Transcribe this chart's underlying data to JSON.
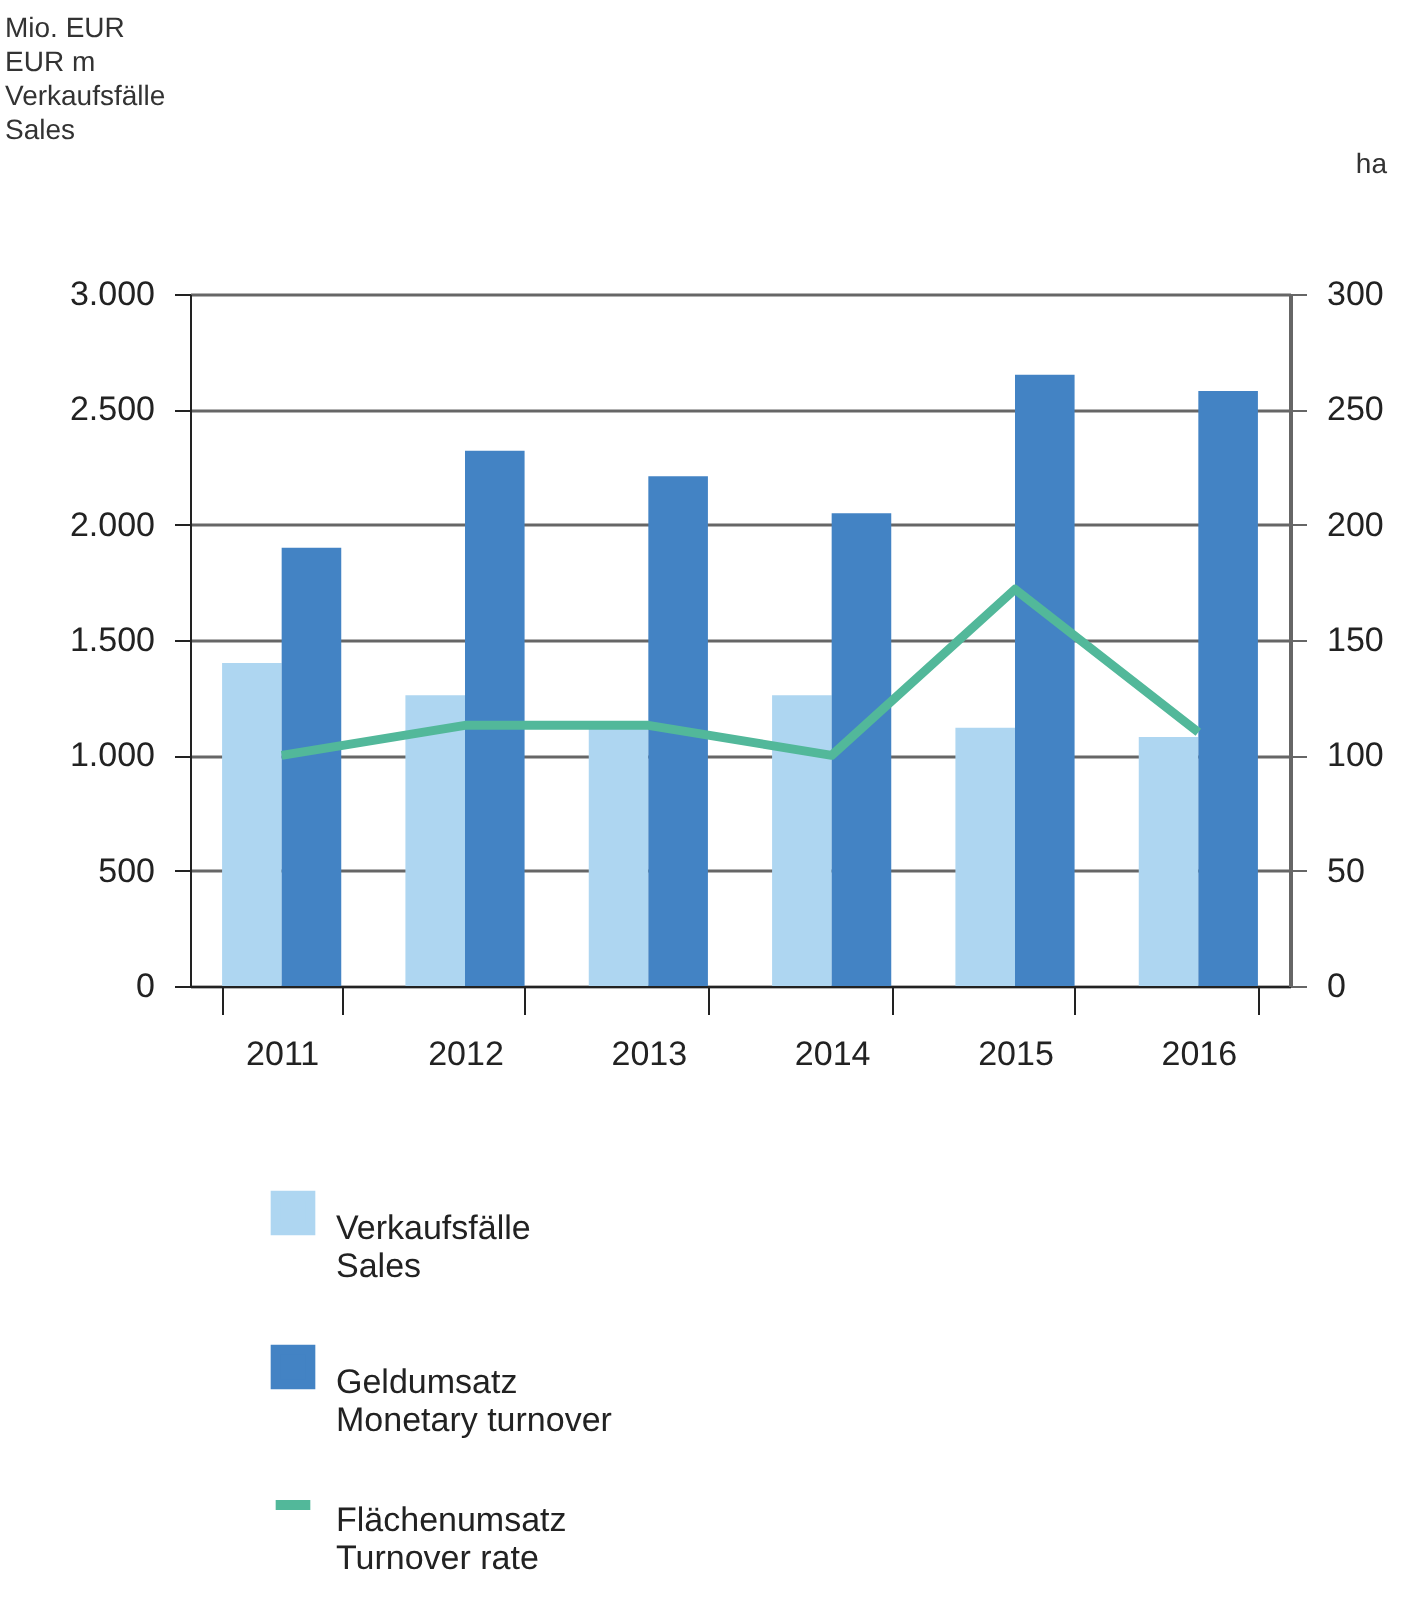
{
  "chart_data": {
    "type": "bar",
    "ylabel": "Mio. EUR\nEUR m\n\nVerkaufsfälle\nSales",
    "y2label": "ha",
    "categories": [
      "2011",
      "2012",
      "2013",
      "2014",
      "2015",
      "2016"
    ],
    "series": [
      {
        "name": "Verkaufsfälle\nSales",
        "color": "#aed6f1",
        "values": [
          1400,
          1260,
          1130,
          1260,
          1120,
          1080
        ]
      },
      {
        "name": "Geldumsatz\nMonetary turnover",
        "color": "#4383c4",
        "values": [
          1900,
          2320,
          2210,
          2050,
          2650,
          2580
        ]
      },
      {
        "name": "Flächenumsatz\nTurnover rate",
        "color": "#52b89a",
        "type": "line",
        "axis": "y2",
        "values": [
          100,
          113,
          113,
          100,
          172,
          110
        ]
      }
    ],
    "ylim": [
      0,
      3000
    ],
    "yticks": [
      0,
      {
        "value": 500,
        "label": "500"
      },
      {
        "value": 1000,
        "label": "1.000"
      },
      {
        "value": 1500,
        "label": "1.500"
      },
      {
        "value": 2000,
        "label": "2.000"
      },
      {
        "value": 2500,
        "label": "2.500"
      },
      {
        "value": 3000,
        "label": "3.000"
      }
    ],
    "y2lim": [
      0,
      300
    ],
    "y2ticks": [
      0,
      50,
      100,
      150,
      200,
      250,
      300
    ],
    "grid": "y",
    "legend": "bottom left"
  }
}
